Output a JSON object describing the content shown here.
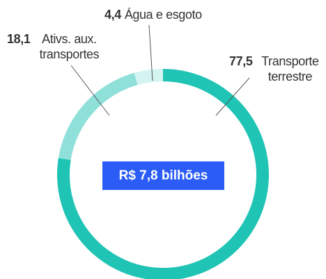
{
  "chart_data": {
    "type": "donut",
    "categories": [
      "Transporte terrestre",
      "Ativs. aux. transportes",
      "Água e esgoto"
    ],
    "values": [
      77.5,
      18.1,
      4.4
    ],
    "value_labels": [
      "77,5",
      "18,1",
      "4,4"
    ],
    "colors": [
      "#1fc4b4",
      "#8fe0d8",
      "#d3f4f0"
    ],
    "center_label": "R$ 7,8 bilhões"
  }
}
